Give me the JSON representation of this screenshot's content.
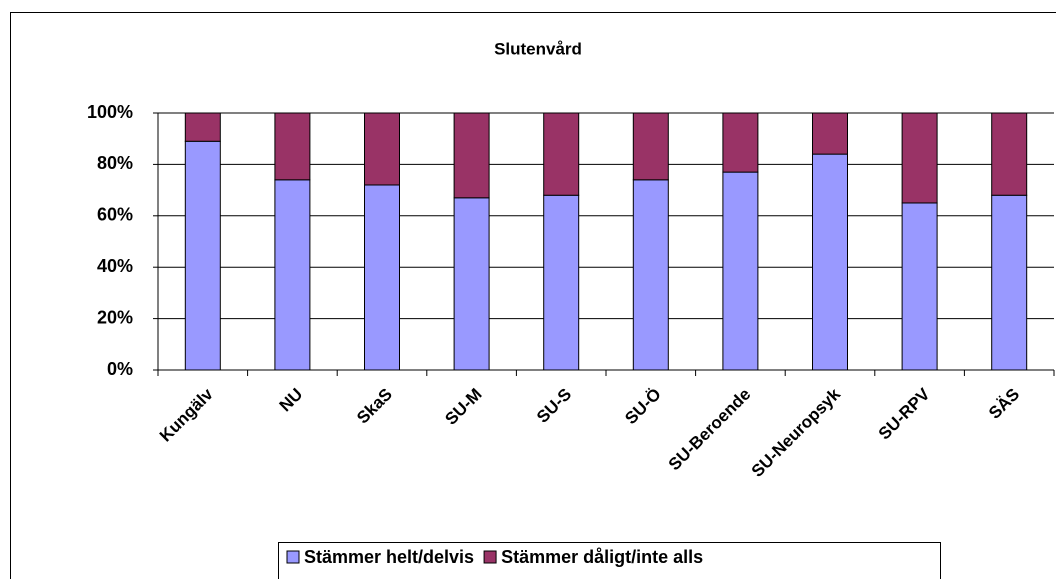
{
  "chart_data": {
    "type": "stacked-bar",
    "title": "Slutenvård",
    "categories": [
      "Kungälv",
      "NU",
      "SkaS",
      "SU-M",
      "SU-S",
      "SU-Ö",
      "SU-Beroende",
      "SU-Neuropsyk",
      "SU-RPV",
      "SÄS"
    ],
    "series": [
      {
        "name": "Stämmer helt/delvis",
        "color": "#9999ff",
        "values": [
          89,
          74,
          72,
          67,
          68,
          74,
          77,
          84,
          65,
          68
        ]
      },
      {
        "name": "Stämmer dåligt/inte alls",
        "color": "#993366",
        "values": [
          11,
          26,
          28,
          33,
          32,
          26,
          23,
          16,
          35,
          32
        ]
      }
    ],
    "ylim": [
      0,
      100
    ],
    "yticks": [
      {
        "value": 0,
        "label": "0%"
      },
      {
        "value": 20,
        "label": "20%"
      },
      {
        "value": 40,
        "label": "40%"
      },
      {
        "value": 60,
        "label": "60%"
      },
      {
        "value": 80,
        "label": "80%"
      },
      {
        "value": 100,
        "label": "100%"
      }
    ],
    "grid": true,
    "legend": "bottom"
  }
}
